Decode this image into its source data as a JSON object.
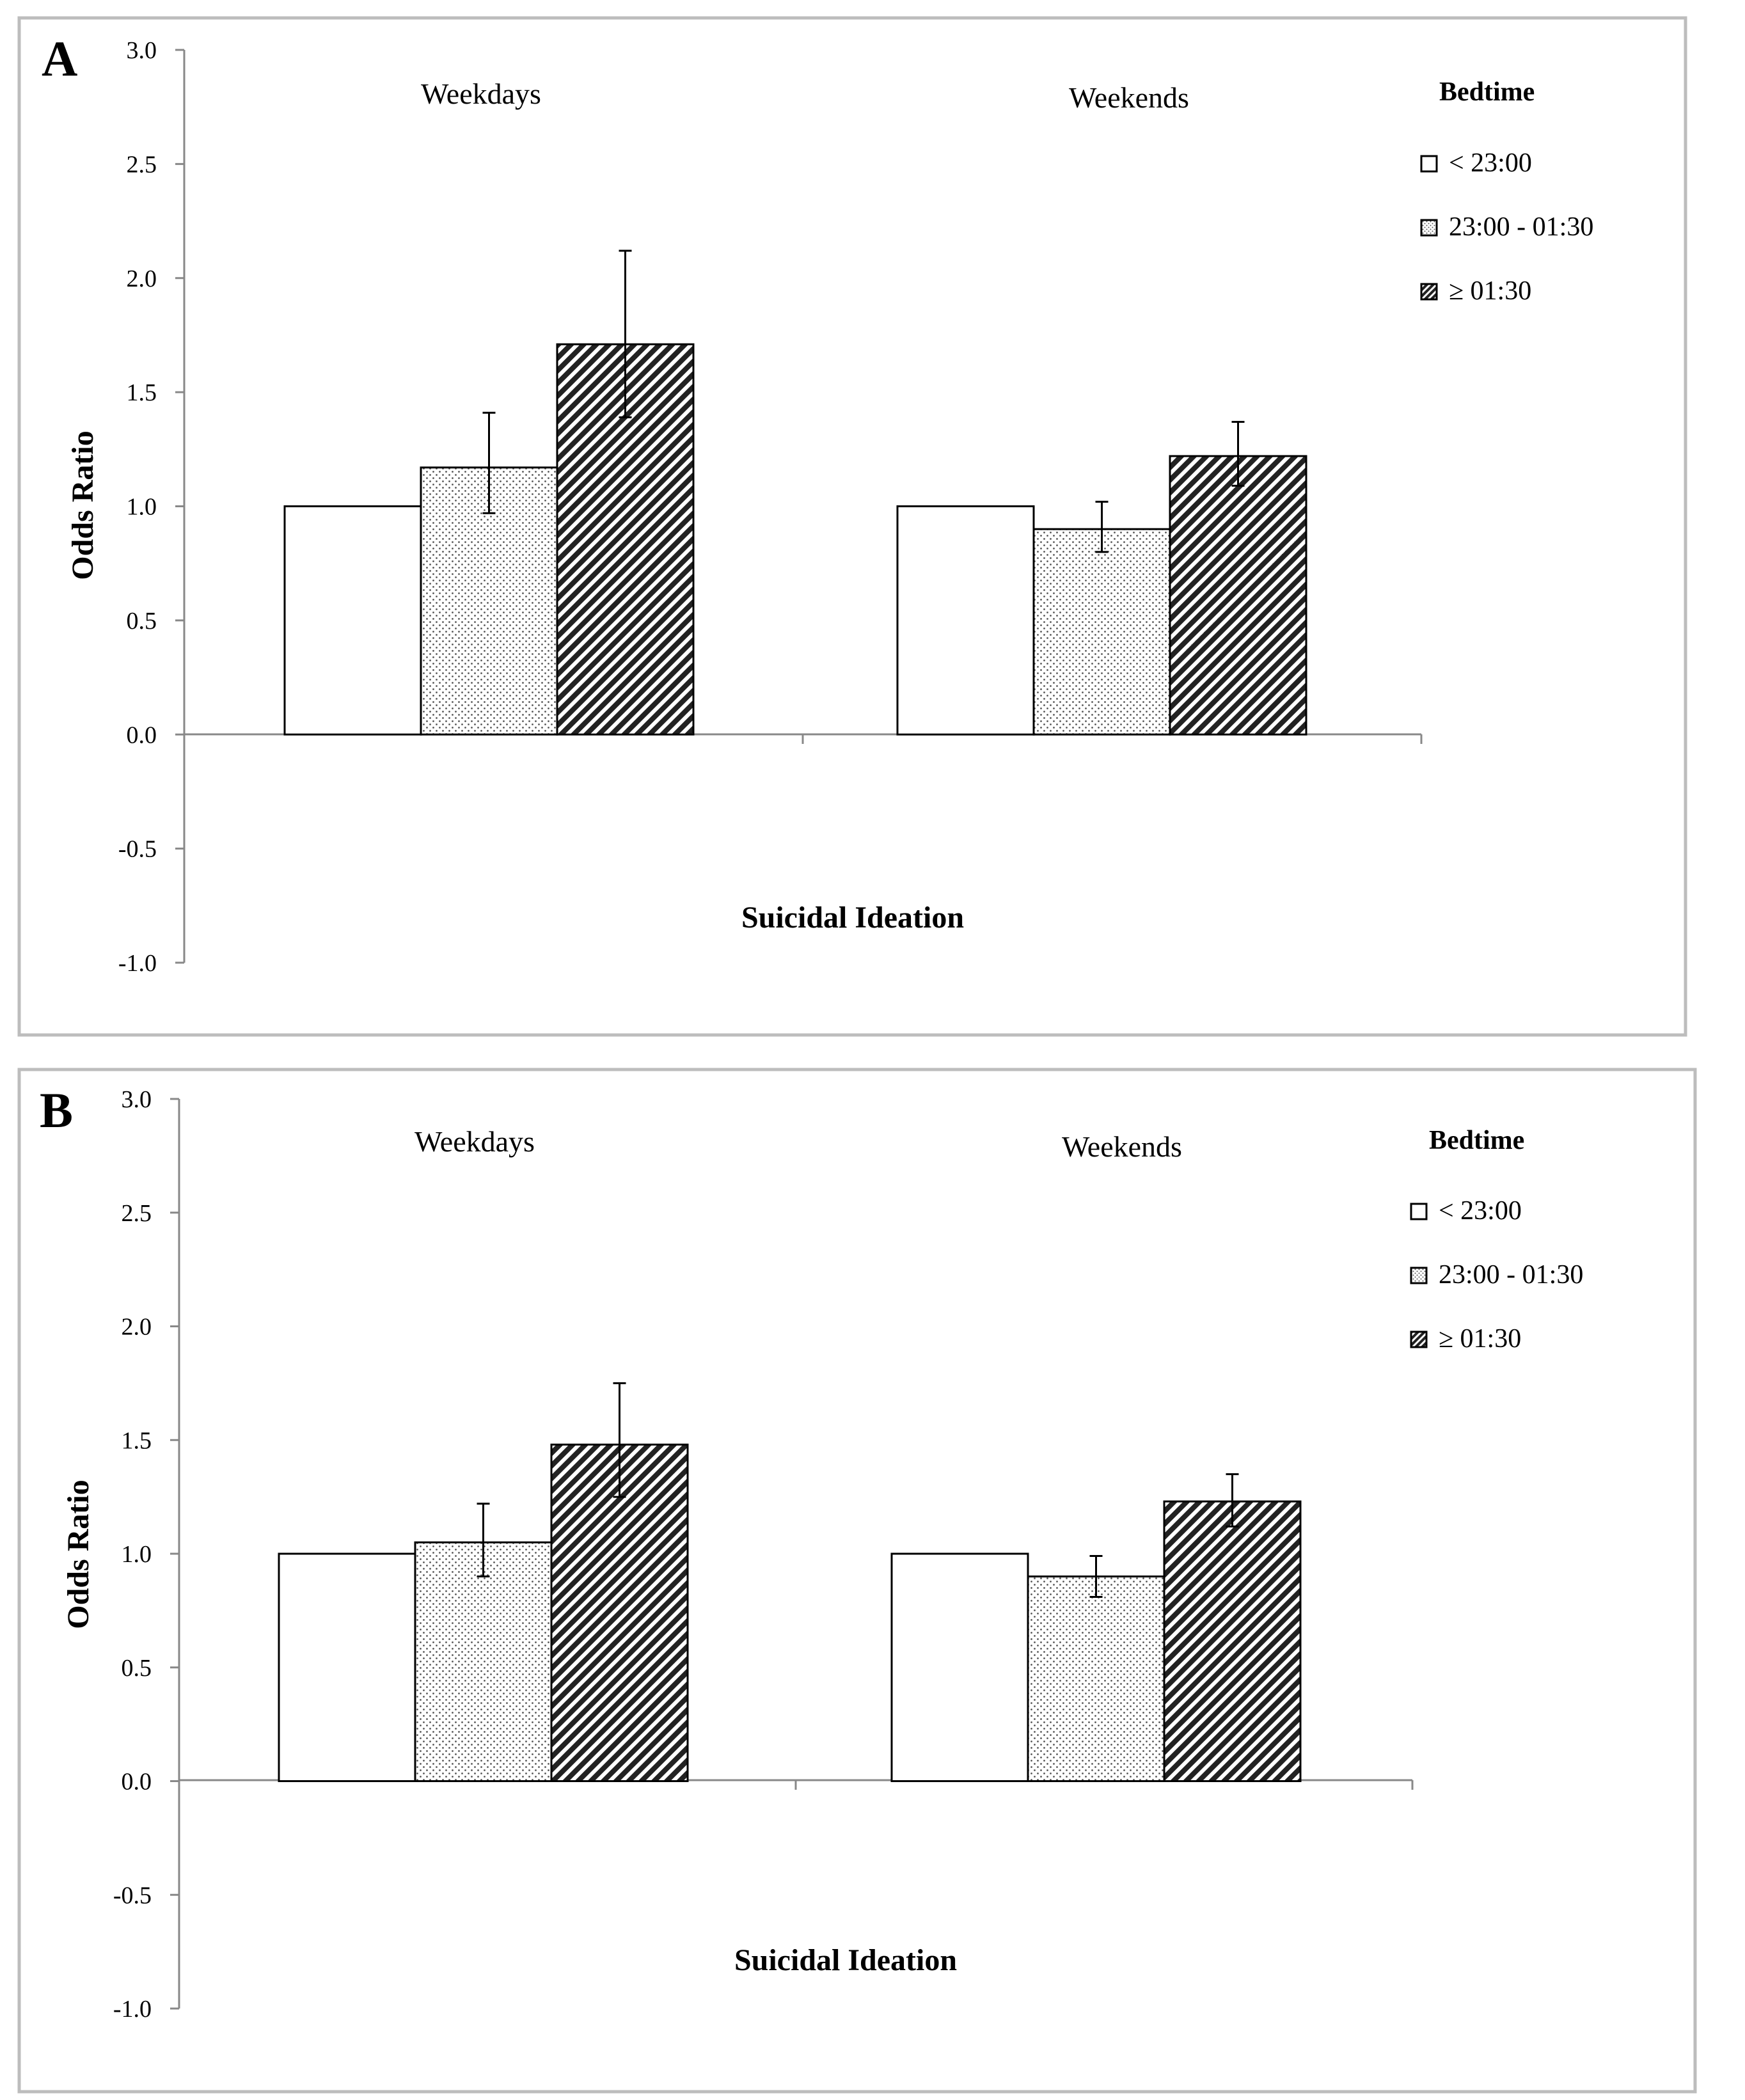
{
  "chart_data": [
    {
      "panel_label": "A",
      "type": "bar",
      "categories": [
        "Weekdays",
        "Weekends"
      ],
      "xlabel": "Suicidal Ideation",
      "ylabel": "Odds Ratio",
      "ylim": [
        -1.0,
        3.0
      ],
      "yticks": [
        "3.0",
        "2.5",
        "2.0",
        "1.5",
        "1.0",
        "0.5",
        "0.0",
        "-0.5",
        "-1.0"
      ],
      "grid": false,
      "legend": {
        "title": "Bedtime",
        "placement": "right"
      },
      "series": [
        {
          "name": "< 23:00",
          "pattern": "empty",
          "values": [
            1.0,
            1.0
          ],
          "err_low": [
            null,
            null
          ],
          "err_high": [
            null,
            null
          ]
        },
        {
          "name": "23:00 - 01:30",
          "pattern": "dotted",
          "values": [
            1.17,
            0.9
          ],
          "err_low": [
            0.97,
            0.8
          ],
          "err_high": [
            1.41,
            1.02
          ]
        },
        {
          "name": "≥ 01:30",
          "pattern": "hatched",
          "values": [
            1.71,
            1.22
          ],
          "err_low": [
            1.39,
            1.09
          ],
          "err_high": [
            2.12,
            1.37
          ]
        }
      ]
    },
    {
      "panel_label": "B",
      "type": "bar",
      "categories": [
        "Weekdays",
        "Weekends"
      ],
      "xlabel": "Suicidal Ideation",
      "ylabel": "Odds Ratio",
      "ylim": [
        -1.0,
        3.0
      ],
      "yticks": [
        "3.0",
        "2.5",
        "2.0",
        "1.5",
        "1.0",
        "0.5",
        "0.0",
        "-0.5",
        "-1.0"
      ],
      "grid": false,
      "legend": {
        "title": "Bedtime",
        "placement": "right"
      },
      "series": [
        {
          "name": "< 23:00",
          "pattern": "empty",
          "values": [
            1.0,
            1.0
          ],
          "err_low": [
            null,
            null
          ],
          "err_high": [
            null,
            null
          ]
        },
        {
          "name": "23:00 - 01:30",
          "pattern": "dotted",
          "values": [
            1.05,
            0.9
          ],
          "err_low": [
            0.9,
            0.81
          ],
          "err_high": [
            1.22,
            0.99
          ]
        },
        {
          "name": "≥ 01:30",
          "pattern": "hatched",
          "values": [
            1.48,
            1.23
          ],
          "err_low": [
            1.25,
            1.12
          ],
          "err_high": [
            1.75,
            1.35
          ]
        }
      ]
    }
  ]
}
